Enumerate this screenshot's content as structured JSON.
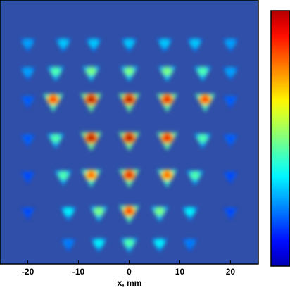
{
  "chart_data": {
    "type": "spot-map",
    "x_label": "x, mm",
    "xlim": [
      -25.5,
      25.5
    ],
    "ylim": [
      -26,
      26
    ],
    "xticks": [
      -20,
      -10,
      0,
      10,
      20
    ],
    "colormap": "jet",
    "clim": [
      0,
      1
    ],
    "x": [
      -20,
      -13,
      -7,
      0,
      7,
      13,
      20,
      -20,
      -14.5,
      -7.5,
      0,
      7.5,
      14.5,
      20,
      -20,
      -15,
      -7.5,
      0,
      7.5,
      15,
      20,
      -20,
      -14.5,
      -7.5,
      0,
      7.5,
      14.5,
      20,
      -20,
      -13,
      -7.5,
      0,
      7.5,
      13,
      20,
      -20,
      -12,
      -6,
      0,
      6,
      12,
      20,
      -12,
      -6,
      0,
      6,
      12
    ],
    "y": [
      17.3,
      17.3,
      17.3,
      17.3,
      17.3,
      17.3,
      17.3,
      11.7,
      11.7,
      11.7,
      11.7,
      11.7,
      11.7,
      11.7,
      6.1,
      6.1,
      6.1,
      6.1,
      6.1,
      6.1,
      6.1,
      -1.5,
      -1.5,
      -1.5,
      -1.5,
      -1.5,
      -1.5,
      -1.5,
      -8.8,
      -8.8,
      -8.8,
      -8.8,
      -8.8,
      -8.8,
      -8.8,
      -15.9,
      -15.9,
      -15.9,
      -15.9,
      -15.9,
      -15.9,
      -15.9,
      -22.1,
      -22.1,
      -22.1,
      -22.1,
      -22.1
    ],
    "values": [
      0.25,
      0.3,
      0.3,
      0.3,
      0.3,
      0.3,
      0.25,
      0.25,
      0.45,
      0.5,
      0.5,
      0.5,
      0.45,
      0.25,
      0.15,
      0.85,
      0.95,
      0.95,
      0.9,
      0.85,
      0.15,
      0.15,
      0.45,
      0.95,
      0.95,
      0.9,
      0.45,
      0.15,
      0.12,
      0.45,
      0.8,
      0.9,
      0.8,
      0.45,
      0.12,
      0.12,
      0.35,
      0.5,
      0.85,
      0.5,
      0.35,
      0.12,
      0.2,
      0.35,
      0.45,
      0.35,
      0.2
    ]
  }
}
